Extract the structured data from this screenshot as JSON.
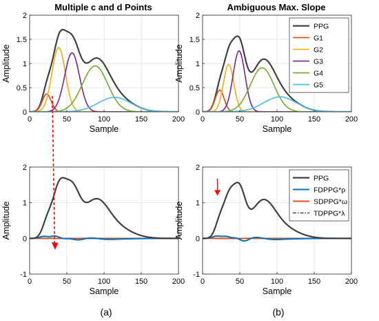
{
  "captions": [
    "(a)",
    "(b)"
  ],
  "colors": {
    "PPG": "#404040",
    "G1": "#d95319",
    "G2": "#edb120",
    "G3": "#7e2f8e",
    "G4": "#77ac30",
    "G5": "#4dbeee",
    "FD": "#0072bd",
    "SD": "#d95319",
    "TD": "#000000",
    "annotation": "#ff0000"
  },
  "chart_data": [
    {
      "id": "top-left",
      "type": "line",
      "title": "Multiple c and d Points",
      "xlabel": "Sample",
      "ylabel": "Amplitude",
      "xlim": [
        0,
        200
      ],
      "ylim": [
        0,
        2
      ],
      "xticks": [
        0,
        50,
        100,
        150,
        200
      ],
      "yticks": [
        0,
        0.5,
        1,
        1.5,
        2
      ],
      "ytick_labels": [
        "0",
        "0.5",
        "1",
        "1.5",
        "2"
      ],
      "grid": true,
      "legend": null,
      "series": [
        {
          "key": "G1",
          "kind": "gauss",
          "a": 0.37,
          "mu": 23,
          "sigma": 6
        },
        {
          "key": "G2",
          "kind": "gauss",
          "a": 1.33,
          "mu": 39,
          "sigma": 9
        },
        {
          "key": "G3",
          "kind": "gauss",
          "a": 1.22,
          "mu": 57,
          "sigma": 10
        },
        {
          "key": "G4",
          "kind": "gauss",
          "a": 0.95,
          "mu": 88,
          "sigma": 17
        },
        {
          "key": "G5",
          "kind": "gauss",
          "a": 0.3,
          "mu": 114,
          "sigma": 22
        },
        {
          "key": "PPG",
          "kind": "sum"
        }
      ]
    },
    {
      "id": "top-right",
      "type": "line",
      "title": "Ambiguous Max. Slope",
      "xlabel": "Sample",
      "ylabel": "Amplitude",
      "xlim": [
        0,
        200
      ],
      "ylim": [
        0,
        2
      ],
      "xticks": [
        0,
        50,
        100,
        150,
        200
      ],
      "yticks": [
        0,
        0.5,
        1,
        1.5,
        2
      ],
      "ytick_labels": [
        "0",
        "0.5",
        "1",
        "1.5",
        "2"
      ],
      "grid": true,
      "legend": {
        "position": "top-right",
        "entries": [
          "PPG",
          "G1",
          "G2",
          "G3",
          "G4",
          "G5"
        ]
      },
      "series": [
        {
          "key": "G1",
          "kind": "gauss",
          "a": 0.45,
          "mu": 23,
          "sigma": 6
        },
        {
          "key": "G2",
          "kind": "gauss",
          "a": 0.98,
          "mu": 35,
          "sigma": 7
        },
        {
          "key": "G3",
          "kind": "gauss",
          "a": 1.26,
          "mu": 49,
          "sigma": 8
        },
        {
          "key": "G4",
          "kind": "gauss",
          "a": 0.91,
          "mu": 80,
          "sigma": 16
        },
        {
          "key": "G5",
          "kind": "gauss",
          "a": 0.31,
          "mu": 104,
          "sigma": 22
        },
        {
          "key": "PPG",
          "kind": "sum"
        }
      ]
    },
    {
      "id": "bottom-left",
      "type": "line",
      "xlabel": "Sample",
      "ylabel": "Amplitude",
      "xlim": [
        0,
        200
      ],
      "ylim": [
        -1,
        2
      ],
      "xticks": [
        0,
        50,
        100,
        150,
        200
      ],
      "yticks": [
        -1,
        0,
        1,
        2
      ],
      "ytick_labels": [
        "-1",
        "0",
        "1",
        "2"
      ],
      "grid": true,
      "legend": null,
      "source": "top-left",
      "series": [
        {
          "key": "PPG",
          "kind": "ppg"
        },
        {
          "key": "FD",
          "kind": "d1",
          "scale": 0.105
        },
        {
          "key": "SD",
          "kind": "d2",
          "scale": 0.53
        },
        {
          "key": "TD",
          "kind": "d3",
          "scale": 2.3
        }
      ]
    },
    {
      "id": "bottom-right",
      "type": "line",
      "xlabel": "Sample",
      "ylabel": "Amplitude",
      "xlim": [
        0,
        200
      ],
      "ylim": [
        -1,
        2
      ],
      "xticks": [
        0,
        50,
        100,
        150,
        200
      ],
      "yticks": [
        -1,
        0,
        1,
        2
      ],
      "ytick_labels": [
        "-1",
        "0",
        "1",
        "2"
      ],
      "grid": true,
      "legend": {
        "position": "top-right",
        "entries": [
          "PPG",
          "FDPPG*ρ",
          "SDPPG*ω",
          "TDPPG*λ"
        ]
      },
      "source": "top-right",
      "series": [
        {
          "key": "PPG",
          "kind": "ppg"
        },
        {
          "key": "FD",
          "kind": "d1",
          "scale": 0.095
        },
        {
          "key": "SD",
          "kind": "d2",
          "scale": 0.4
        },
        {
          "key": "TD",
          "kind": "d3",
          "scale": 1.8
        }
      ]
    }
  ],
  "annotations": [
    {
      "kind": "dashed-arrow",
      "x": 30,
      "from_panel": "top-left",
      "from_y": 0.33,
      "to_panel": "bottom-left",
      "to_y": -0.3
    },
    {
      "kind": "arrow",
      "panel": "bottom-right",
      "x": 20,
      "from_y": 1.68,
      "to_y": 1.2
    }
  ]
}
